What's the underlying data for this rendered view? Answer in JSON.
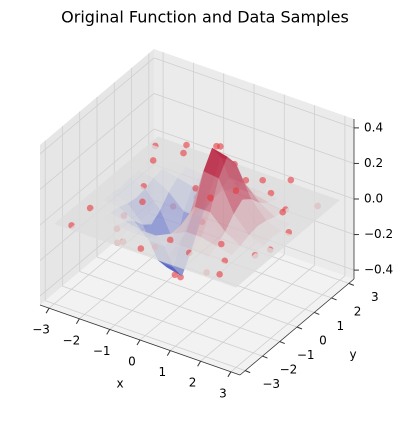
{
  "chart_data": {
    "type": "surface3d",
    "title": "Original Function and Data Samples",
    "xlabel": "x",
    "ylabel": "y",
    "xlim": [
      -3.3,
      3.3
    ],
    "ylim": [
      -3.3,
      3.3
    ],
    "zlim": [
      -0.45,
      0.45
    ],
    "xticks": [
      {
        "value": -3,
        "label": "−3"
      },
      {
        "value": -2,
        "label": "−2"
      },
      {
        "value": -1,
        "label": "−1"
      },
      0,
      1,
      2,
      3
    ],
    "yticks": [
      {
        "value": -3,
        "label": "−3"
      },
      {
        "value": -2,
        "label": "−2"
      },
      {
        "value": -1,
        "label": "−1"
      },
      0,
      1,
      2,
      3
    ],
    "zticks": [
      {
        "value": -0.4,
        "label": "−0.4"
      },
      {
        "value": -0.2,
        "label": "−0.2"
      },
      {
        "value": 0,
        "label": "0.0"
      },
      0.2,
      0.4
    ],
    "grid": true,
    "colormap": [
      "#3b4cc0",
      "#dddddd",
      "#b40426"
    ],
    "surface": {
      "x": [
        -3,
        -2.5,
        -2,
        -1.5,
        -1,
        -0.5,
        0,
        0.5,
        1,
        1.5,
        2,
        2.5,
        3
      ],
      "y": [
        -3,
        -2.5,
        -2,
        -1.5,
        -1,
        -0.5,
        0,
        0.5,
        1,
        1.5,
        2,
        2.5,
        3
      ],
      "z": [
        [
          0,
          0,
          0,
          0,
          0,
          0,
          0,
          0,
          0,
          0,
          0,
          0,
          0
        ],
        [
          0,
          0,
          0,
          0,
          0,
          0,
          0,
          0,
          0,
          0,
          0,
          0,
          0
        ],
        [
          0,
          0,
          0,
          0,
          -0.01,
          -0.01,
          0,
          0.01,
          0.01,
          0,
          0,
          0,
          0
        ],
        [
          0,
          0,
          0,
          -0.02,
          -0.04,
          -0.04,
          0,
          0.04,
          0.04,
          0.02,
          0,
          0,
          0
        ],
        [
          0,
          0,
          -0.01,
          -0.06,
          -0.14,
          -0.14,
          0,
          0.14,
          0.14,
          0.06,
          0.01,
          0,
          0
        ],
        [
          0,
          0,
          -0.03,
          -0.12,
          -0.29,
          -0.3,
          0,
          0.3,
          0.29,
          0.12,
          0.03,
          0,
          0
        ],
        [
          0,
          -0.01,
          -0.04,
          -0.16,
          -0.37,
          -0.39,
          0,
          0.39,
          0.37,
          0.16,
          0.04,
          0.01,
          0
        ],
        [
          0,
          0,
          -0.03,
          -0.12,
          -0.29,
          -0.3,
          0,
          0.3,
          0.29,
          0.12,
          0.03,
          0,
          0
        ],
        [
          0,
          0,
          -0.01,
          -0.06,
          -0.14,
          -0.14,
          0,
          0.14,
          0.14,
          0.06,
          0.01,
          0,
          0
        ],
        [
          0,
          0,
          0,
          -0.02,
          -0.04,
          -0.04,
          0,
          0.04,
          0.04,
          0.02,
          0,
          0,
          0
        ],
        [
          0,
          0,
          0,
          0,
          -0.01,
          -0.01,
          0,
          0.01,
          0.01,
          0,
          0,
          0,
          0
        ],
        [
          0,
          0,
          0,
          0,
          0,
          0,
          0,
          0,
          0,
          0,
          0,
          0,
          0
        ],
        [
          0,
          0,
          0,
          0,
          0,
          0,
          0,
          0,
          0,
          0,
          0,
          0,
          0
        ]
      ]
    },
    "samples": {
      "color": "#e8383d",
      "x": [
        -2.5,
        -2.1,
        -1.7,
        -1.2,
        -0.8,
        -0.5,
        -0.3,
        0.2,
        0.6,
        0.9,
        1.3,
        1.8,
        2.2,
        2.7,
        -2.8,
        -1.9,
        -1.0,
        -0.2,
        0.4,
        1.1,
        1.6,
        2.5,
        -2.3,
        -1.5,
        -0.7,
        0.0,
        0.8,
        1.4,
        2.0,
        2.8,
        -2.6,
        -1.3,
        -0.4,
        0.3,
        1.0,
        1.9,
        2.4,
        -2.0,
        -0.9,
        0.7,
        -0.6,
        1.5,
        -1.8,
        0.1,
        2.6
      ],
      "y": [
        -1.8,
        0.6,
        2.2,
        -2.5,
        1.4,
        -0.4,
        2.7,
        -1.9,
        0.3,
        -0.8,
        2.0,
        -2.6,
        1.1,
        -0.5,
        2.5,
        -0.9,
        0.2,
        -2.9,
        1.7,
        0.9,
        -1.4,
        2.6,
        1.5,
        -2.0,
        -1.2,
        0.8,
        2.4,
        -0.2,
        -1.9,
        0.4,
        -2.7,
        0.9,
        1.0,
        -0.6,
        -2.2,
        1.8,
        -2.9,
        2.9,
        -2.7,
        -0.1,
        0.1,
        2.8,
        0.0,
        2.1,
        -1.2
      ],
      "z": [
        0.02,
        -0.03,
        0.05,
        -0.04,
        -0.08,
        -0.35,
        0.03,
        0.01,
        0.38,
        0.2,
        0.02,
        -0.02,
        0.04,
        -0.01,
        0.0,
        -0.06,
        -0.33,
        0.02,
        0.05,
        0.17,
        0.03,
        -0.03,
        0.03,
        -0.02,
        -0.14,
        0.01,
        0.03,
        0.22,
        0.0,
        0.02,
        -0.01,
        -0.12,
        -0.16,
        0.2,
        0.01,
        -0.02,
        0.03,
        0.02,
        0.0,
        0.42,
        -0.41,
        0.04,
        -0.05,
        -0.02,
        0.01
      ]
    }
  }
}
